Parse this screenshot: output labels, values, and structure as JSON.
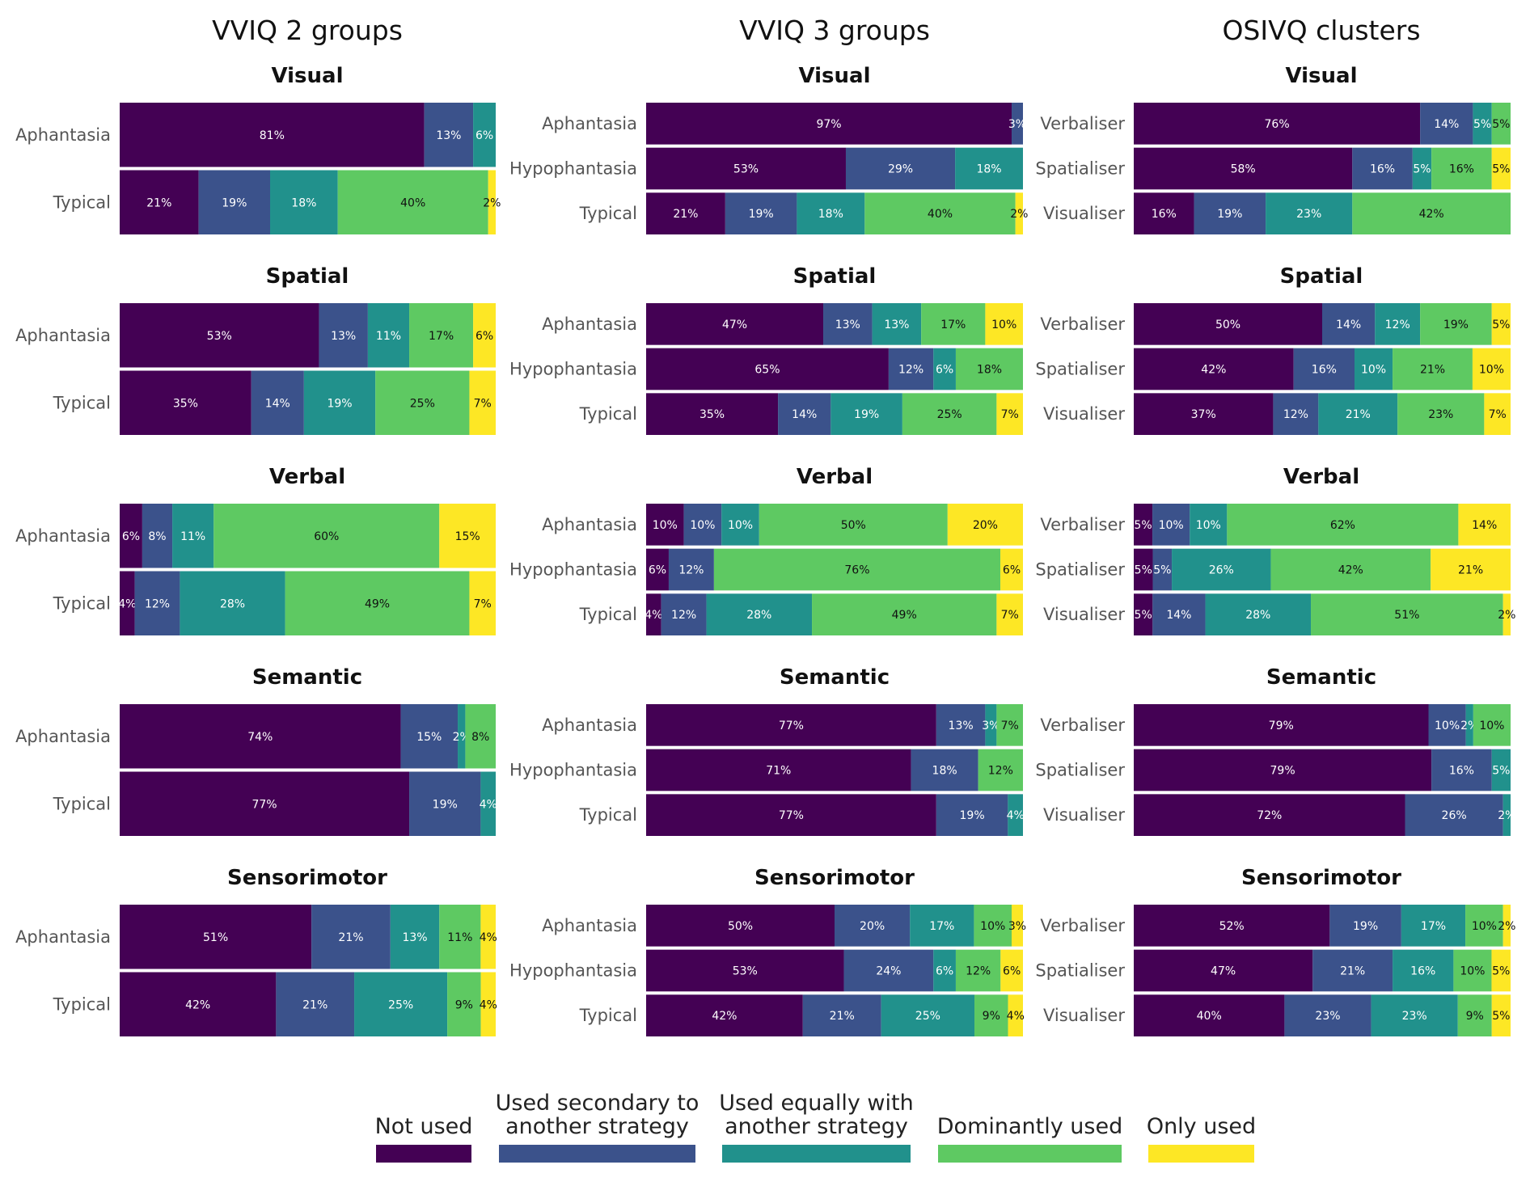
{
  "chart_data": {
    "type": "bar",
    "orientation": "horizontal",
    "stacked": true,
    "percent": true,
    "xlim": [
      0,
      100
    ],
    "grid": false,
    "legend_position": "bottom",
    "categories": [
      "Not used",
      "Used secondary to another strategy",
      "Used equally with another strategy",
      "Dominantly used",
      "Only used"
    ],
    "legend": [
      {
        "label_lines": [
          "Not used"
        ],
        "color": "#440154"
      },
      {
        "label_lines": [
          "Used secondary to",
          "another strategy"
        ],
        "color": "#3b528b"
      },
      {
        "label_lines": [
          "Used equally with",
          "another strategy"
        ],
        "color": "#21918c"
      },
      {
        "label_lines": [
          "Dominantly used"
        ],
        "color": "#5ec962"
      },
      {
        "label_lines": [
          "Only used"
        ],
        "color": "#fde725"
      }
    ],
    "label_text_colors": [
      "#ffffff",
      "#ffffff",
      "#ffffff",
      "#111111",
      "#111111"
    ],
    "columns": [
      {
        "title": "VVIQ 2 groups",
        "groups": [
          "Aphantasia",
          "Typical"
        ],
        "panels": [
          {
            "title": "Visual",
            "rows": [
              [
                81,
                13,
                6,
                0,
                0
              ],
              [
                21,
                19,
                18,
                40,
                2
              ]
            ]
          },
          {
            "title": "Spatial",
            "rows": [
              [
                53,
                13,
                11,
                17,
                6
              ],
              [
                35,
                14,
                19,
                25,
                7
              ]
            ]
          },
          {
            "title": "Verbal",
            "rows": [
              [
                6,
                8,
                11,
                60,
                15
              ],
              [
                4,
                12,
                28,
                49,
                7
              ]
            ]
          },
          {
            "title": "Semantic",
            "rows": [
              [
                74,
                15,
                2,
                8,
                0
              ],
              [
                77,
                19,
                4,
                0,
                0
              ]
            ]
          },
          {
            "title": "Sensorimotor",
            "rows": [
              [
                51,
                21,
                13,
                11,
                4
              ],
              [
                42,
                21,
                25,
                9,
                4
              ]
            ]
          }
        ]
      },
      {
        "title": "VVIQ 3 groups",
        "groups": [
          "Aphantasia",
          "Hypophantasia",
          "Typical"
        ],
        "panels": [
          {
            "title": "Visual",
            "rows": [
              [
                97,
                3,
                0,
                0,
                0
              ],
              [
                53,
                29,
                18,
                0,
                0
              ],
              [
                21,
                19,
                18,
                40,
                2
              ]
            ]
          },
          {
            "title": "Spatial",
            "rows": [
              [
                47,
                13,
                13,
                17,
                10
              ],
              [
                65,
                12,
                6,
                18,
                0
              ],
              [
                35,
                14,
                19,
                25,
                7
              ]
            ]
          },
          {
            "title": "Verbal",
            "rows": [
              [
                10,
                10,
                10,
                50,
                20
              ],
              [
                6,
                12,
                0,
                76,
                6
              ],
              [
                4,
                12,
                28,
                49,
                7
              ]
            ]
          },
          {
            "title": "Semantic",
            "rows": [
              [
                77,
                13,
                3,
                7,
                0
              ],
              [
                71,
                18,
                0,
                12,
                0
              ],
              [
                77,
                19,
                4,
                0,
                0
              ]
            ]
          },
          {
            "title": "Sensorimotor",
            "rows": [
              [
                50,
                20,
                17,
                10,
                3
              ],
              [
                53,
                24,
                6,
                12,
                6
              ],
              [
                42,
                21,
                25,
                9,
                4
              ]
            ]
          }
        ]
      },
      {
        "title": "OSIVQ clusters",
        "groups": [
          "Verbaliser",
          "Spatialiser",
          "Visualiser"
        ],
        "panels": [
          {
            "title": "Visual",
            "rows": [
              [
                76,
                14,
                5,
                5,
                0
              ],
              [
                58,
                16,
                5,
                16,
                5
              ],
              [
                16,
                19,
                23,
                42,
                0
              ]
            ]
          },
          {
            "title": "Spatial",
            "rows": [
              [
                50,
                14,
                12,
                19,
                5
              ],
              [
                42,
                16,
                10,
                21,
                10
              ],
              [
                37,
                12,
                21,
                23,
                7
              ]
            ]
          },
          {
            "title": "Verbal",
            "rows": [
              [
                5,
                10,
                10,
                62,
                14
              ],
              [
                5,
                5,
                26,
                42,
                21
              ],
              [
                5,
                14,
                28,
                51,
                2
              ]
            ]
          },
          {
            "title": "Semantic",
            "rows": [
              [
                79,
                10,
                2,
                10,
                0
              ],
              [
                79,
                16,
                5,
                0,
                0
              ],
              [
                72,
                26,
                2,
                0,
                0
              ]
            ]
          },
          {
            "title": "Sensorimotor",
            "rows": [
              [
                52,
                19,
                17,
                10,
                2
              ],
              [
                47,
                21,
                16,
                10,
                5
              ],
              [
                40,
                23,
                23,
                9,
                5
              ]
            ]
          }
        ]
      }
    ]
  }
}
